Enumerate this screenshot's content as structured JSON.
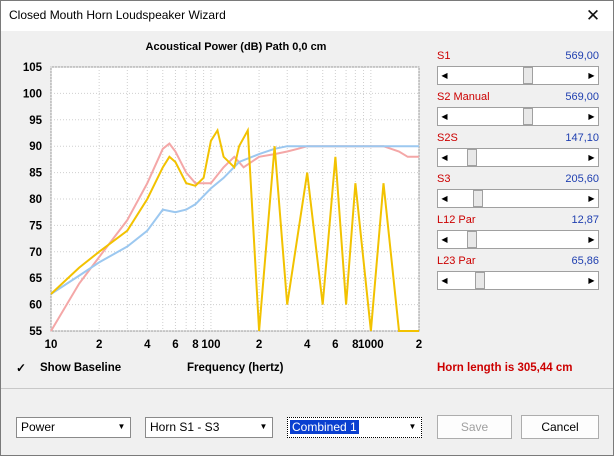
{
  "window": {
    "title": "Closed Mouth Horn Loudspeaker Wizard",
    "close_glyph": "✕"
  },
  "chart_data": {
    "type": "line",
    "title": "Acoustical Power (dB)   Path 0,0 cm",
    "xlabel": "Frequency (hertz)",
    "ylabel": "",
    "x_scale": "log",
    "xlim": [
      10,
      2000
    ],
    "ylim": [
      55,
      105
    ],
    "y_ticks": [
      "105",
      "100",
      "95",
      "90",
      "85",
      "80",
      "75",
      "70",
      "65",
      "60",
      "55"
    ],
    "x_ticks": [
      "10",
      "2",
      "4",
      "6",
      "8",
      "100",
      "2",
      "4",
      "6",
      "8",
      "1000",
      "2"
    ],
    "grid": true,
    "series": [
      {
        "color": "#f4a7a7",
        "x": [
          10,
          15,
          20,
          30,
          40,
          50,
          55,
          60,
          70,
          80,
          100,
          120,
          140,
          160,
          200,
          250,
          300,
          350,
          400,
          500,
          600,
          700,
          800,
          1000,
          1200,
          1500,
          1700,
          2000
        ],
        "y": [
          55,
          64,
          69,
          76,
          83,
          89.5,
          90.5,
          89,
          85,
          83,
          83,
          86,
          88,
          86,
          88,
          88.5,
          89,
          89.5,
          90,
          90,
          90,
          90,
          90,
          90,
          90,
          89,
          88,
          88
        ]
      },
      {
        "color": "#9cc8f0",
        "x": [
          10,
          15,
          20,
          30,
          40,
          50,
          60,
          70,
          80,
          100,
          120,
          150,
          200,
          250,
          300,
          400,
          500,
          700,
          1000,
          1500,
          2000
        ],
        "y": [
          62,
          65.5,
          68,
          71,
          74,
          78,
          77.5,
          78,
          79,
          82,
          84,
          87,
          88.5,
          89.5,
          90,
          90,
          90,
          90,
          90,
          90,
          90
        ]
      },
      {
        "color": "#f2c200",
        "x": [
          10,
          15,
          20,
          30,
          40,
          50,
          55,
          60,
          70,
          80,
          90,
          100,
          110,
          120,
          140,
          150,
          170,
          200,
          250,
          300,
          400,
          500,
          600,
          700,
          800,
          1000,
          1200,
          1500,
          2000
        ],
        "y": [
          62,
          67,
          70,
          74,
          80,
          86,
          88,
          87,
          83,
          82.5,
          84,
          91,
          93,
          88,
          86,
          90,
          93,
          55,
          90,
          60,
          85,
          60,
          88,
          60,
          83,
          55,
          83,
          55,
          55
        ]
      }
    ]
  },
  "params": [
    {
      "label": "S1",
      "value": "569,00",
      "thumb_fraction": 0.58
    },
    {
      "label": "S2  Manual",
      "value": "569,00",
      "thumb_fraction": 0.58
    },
    {
      "label": "S2S",
      "value": "147,10",
      "thumb_fraction": 0.13
    },
    {
      "label": "S3",
      "value": "205,60",
      "thumb_fraction": 0.18
    },
    {
      "label": "L12  Par",
      "value": "12,87",
      "thumb_fraction": 0.13
    },
    {
      "label": "L23  Par",
      "value": "65,86",
      "thumb_fraction": 0.19
    }
  ],
  "controls": {
    "show_baseline_label": "Show Baseline",
    "show_baseline_checked": "✓",
    "horn_length": "Horn length is 305,44 cm"
  },
  "dropdowns": [
    {
      "value": "Power"
    },
    {
      "value": "Horn S1 - S3"
    },
    {
      "value": "Combined 1"
    }
  ],
  "buttons": {
    "save": "Save",
    "cancel": "Cancel"
  },
  "icons": {
    "arrow_left": "◀",
    "arrow_right": "▶",
    "combo_arrow": "▼"
  }
}
